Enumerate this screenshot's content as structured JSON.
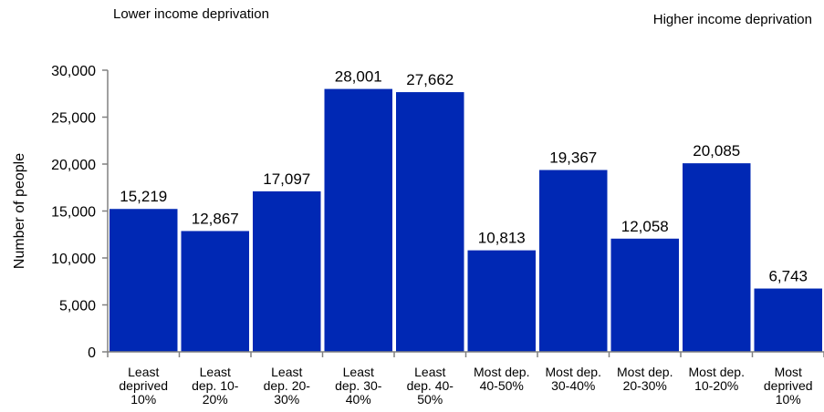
{
  "annotations": {
    "left": "Lower income deprivation",
    "right": "Higher income deprivation"
  },
  "chart_data": {
    "type": "bar",
    "title": "",
    "xlabel": "",
    "ylabel": "Number of people",
    "ylim": [
      0,
      30000
    ],
    "yticks": [
      0,
      5000,
      10000,
      15000,
      20000,
      25000,
      30000
    ],
    "ytick_labels": [
      "0",
      "5,000",
      "10,000",
      "15,000",
      "20,000",
      "25,000",
      "30,000"
    ],
    "grid": false,
    "bar_color": "#0028B4",
    "categories": [
      [
        "Least",
        "deprived",
        "10%"
      ],
      [
        "Least",
        "dep. 10-",
        "20%"
      ],
      [
        "Least",
        "dep. 20-",
        "30%"
      ],
      [
        "Least",
        "dep. 30-",
        "40%"
      ],
      [
        "Least",
        "dep. 40-",
        "50%"
      ],
      [
        "Most dep.",
        "40-50%"
      ],
      [
        "Most dep.",
        "30-40%"
      ],
      [
        "Most dep.",
        "20-30%"
      ],
      [
        "Most dep.",
        "10-20%"
      ],
      [
        "Most",
        "deprived",
        "10%"
      ]
    ],
    "values": [
      15219,
      12867,
      17097,
      28001,
      27662,
      10813,
      19367,
      12058,
      20085,
      6743
    ],
    "value_labels": [
      "15,219",
      "12,867",
      "17,097",
      "28,001",
      "27,662",
      "10,813",
      "19,367",
      "12,058",
      "20,085",
      "6,743"
    ]
  }
}
